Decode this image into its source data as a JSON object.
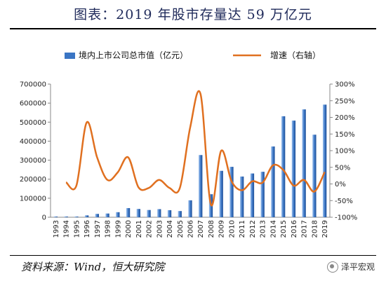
{
  "header": {
    "title": "图表：2019 年股市存量达 59 万亿元"
  },
  "footer": {
    "source": "资料来源：Wind，恒大研究院",
    "watermark": "泽平宏观"
  },
  "chart_data": {
    "type": "bar+line",
    "title": "图表：2019 年股市存量达 59 万亿元",
    "categories": [
      "1993",
      "1994",
      "1995",
      "1996",
      "1997",
      "1998",
      "1999",
      "2000",
      "2001",
      "2002",
      "2003",
      "2004",
      "2005",
      "2006",
      "2007",
      "2008",
      "2009",
      "2010",
      "2011",
      "2012",
      "2013",
      "2014",
      "2015",
      "2016",
      "2017",
      "2018",
      "2019"
    ],
    "series": [
      {
        "name": "境内上市公司总市值（亿元）",
        "type": "bar",
        "axis": "left",
        "color": "#3a75c4",
        "values": [
          3500,
          3700,
          3500,
          9800,
          17500,
          19500,
          26500,
          48000,
          43500,
          38000,
          42500,
          37000,
          32500,
          89000,
          327000,
          121000,
          244000,
          265000,
          214000,
          230000,
          239000,
          372000,
          531000,
          508000,
          567000,
          434000,
          592000
        ]
      },
      {
        "name": "增速（右轴）",
        "type": "line",
        "axis": "right",
        "color": "#e07020",
        "values": [
          null,
          5,
          -5,
          185,
          80,
          12,
          35,
          80,
          -10,
          -12,
          12,
          -12,
          -12,
          170,
          270,
          -62,
          100,
          8,
          -19,
          8,
          4,
          56,
          42,
          -5,
          12,
          -23,
          36
        ]
      }
    ],
    "y_left": {
      "min": 0,
      "max": 700000,
      "ticks": [
        "0",
        "100000",
        "200000",
        "300000",
        "400000",
        "500000",
        "600000",
        "700000"
      ]
    },
    "y_right": {
      "min": -100,
      "max": 300,
      "ticks": [
        "-100%",
        "-50%",
        "0%",
        "50%",
        "100%",
        "150%",
        "200%",
        "250%",
        "300%"
      ]
    },
    "grid": false,
    "legend_position": "top"
  }
}
